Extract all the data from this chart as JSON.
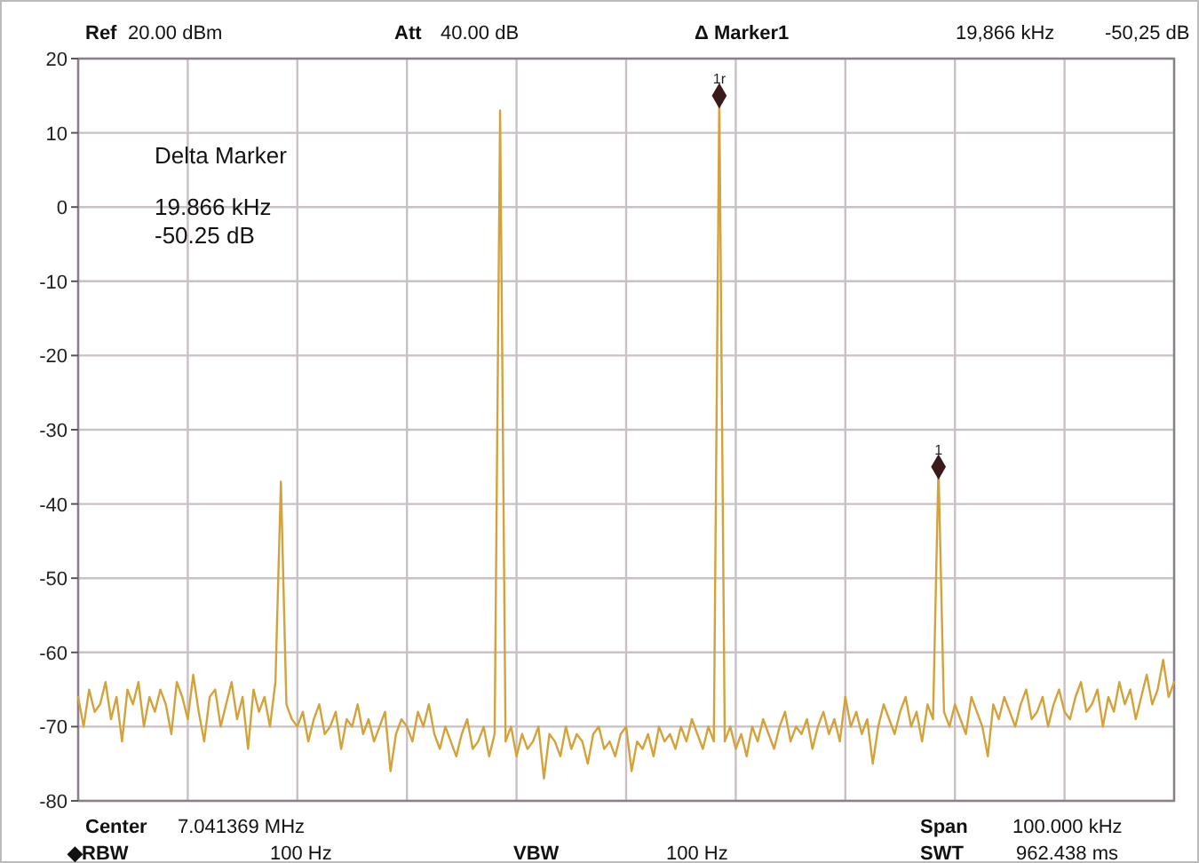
{
  "chart_data": {
    "type": "line",
    "ylim": [
      -80,
      20
    ],
    "yticks": [
      20,
      10,
      0,
      -10,
      -20,
      -30,
      -40,
      -50,
      -60,
      -70,
      -80
    ],
    "grid": true,
    "marker": "none",
    "categories": [
      null,
      null,
      null,
      null,
      null,
      null,
      null,
      null,
      null,
      null,
      null,
      null,
      null,
      null,
      null,
      null,
      null,
      null,
      null,
      null,
      null,
      null,
      null,
      null,
      null,
      null,
      null,
      null,
      null,
      null,
      null,
      null,
      null,
      null,
      null,
      null,
      null,
      null,
      null,
      null,
      null,
      null,
      null,
      null,
      null,
      null,
      null,
      null,
      null,
      null,
      null,
      null,
      null,
      null,
      null,
      null,
      null,
      null,
      null,
      null,
      null,
      null,
      null,
      null,
      null,
      null,
      null,
      null,
      null,
      null,
      null,
      null,
      null,
      null,
      null,
      null,
      null,
      null,
      null,
      null,
      null,
      null,
      null,
      null,
      null,
      null,
      null,
      null,
      null,
      null,
      null,
      null,
      null,
      null,
      null,
      null,
      null,
      null,
      null,
      null,
      null,
      null,
      null,
      null,
      null,
      null,
      null,
      null,
      null,
      null,
      null,
      null,
      null,
      null,
      null,
      null,
      null,
      null,
      null,
      null,
      null,
      null,
      null,
      null,
      null,
      null,
      null,
      null,
      null,
      null,
      null,
      null,
      null,
      null,
      null,
      null,
      null,
      null,
      null,
      null,
      null,
      null,
      null,
      null,
      null,
      null,
      null,
      null,
      null,
      null,
      null,
      null,
      null,
      null,
      null,
      null,
      null,
      null,
      null,
      null,
      null,
      null,
      null,
      null,
      null,
      null,
      null,
      null,
      null,
      null,
      null,
      null,
      null,
      null,
      null,
      null,
      null,
      null,
      null,
      null,
      null,
      null,
      null,
      null,
      null,
      null,
      null,
      null,
      null,
      null,
      null,
      null,
      null,
      null,
      null,
      null,
      null,
      null,
      null,
      null,
      null
    ],
    "series": [
      {
        "color": "#d4a23a",
        "values": [
          -66,
          -70,
          -65,
          -68,
          -67,
          -64,
          -69,
          -66,
          -72,
          -65,
          -67,
          -64,
          -70,
          -66,
          -68,
          -65,
          -67,
          -71,
          -64,
          -66,
          -69,
          -63,
          -68,
          -72,
          -66,
          -65,
          -70,
          -67,
          -64,
          -69,
          -66,
          -73,
          -65,
          -68,
          -66,
          -70,
          -64,
          -37,
          -67,
          -69,
          -70,
          -68,
          -72,
          -69,
          -67,
          -71,
          -70,
          -68,
          -73,
          -69,
          -70,
          -67,
          -71,
          -69,
          -72,
          -70,
          -68,
          -76,
          -71,
          -69,
          -70,
          -72,
          -68,
          -70,
          -67,
          -71,
          -73,
          -70,
          -72,
          -74,
          -71,
          -69,
          -73,
          -72,
          -70,
          -74,
          -71,
          13,
          -72,
          -70,
          -74,
          -71,
          -73,
          -72,
          -70,
          -77,
          -71,
          -72,
          -74,
          -70,
          -73,
          -71,
          -72,
          -75,
          -71,
          -70,
          -73,
          -72,
          -74,
          -71,
          -70,
          -76,
          -72,
          -73,
          -71,
          -74,
          -70,
          -72,
          -71,
          -73,
          -70,
          -72,
          -69,
          -71,
          -73,
          -70,
          -72,
          15,
          -72,
          -70,
          -73,
          -71,
          -74,
          -70,
          -72,
          -69,
          -71,
          -73,
          -70,
          -68,
          -72,
          -70,
          -71,
          -69,
          -73,
          -70,
          -68,
          -71,
          -69,
          -72,
          -66,
          -70,
          -68,
          -71,
          -69,
          -75,
          -70,
          -67,
          -69,
          -71,
          -68,
          -66,
          -70,
          -68,
          -72,
          -67,
          -69,
          -35,
          -68,
          -70,
          -67,
          -69,
          -71,
          -66,
          -68,
          -70,
          -74,
          -67,
          -69,
          -66,
          -68,
          -70,
          -67,
          -65,
          -69,
          -68,
          -66,
          -70,
          -67,
          -65,
          -68,
          -69,
          -66,
          -64,
          -68,
          -67,
          -65,
          -70,
          -66,
          -68,
          -64,
          -67,
          -65,
          -69,
          -66,
          -63,
          -67,
          -65,
          -61,
          -66,
          -64
        ]
      },
      {
        "type": "scatter",
        "color": "#3a1a1a",
        "marker": "diamond",
        "values": [
          null,
          null,
          null,
          null,
          null,
          null,
          null,
          null,
          null,
          null,
          null,
          null,
          null,
          null,
          null,
          null,
          null,
          null,
          null,
          null,
          null,
          null,
          null,
          null,
          null,
          null,
          null,
          null,
          null,
          null,
          null,
          null,
          null,
          null,
          null,
          null,
          null,
          null,
          null,
          null,
          null,
          null,
          null,
          null,
          null,
          null,
          null,
          null,
          null,
          null,
          null,
          null,
          null,
          null,
          null,
          null,
          null,
          null,
          null,
          null,
          null,
          null,
          null,
          null,
          null,
          null,
          null,
          null,
          null,
          null,
          null,
          null,
          null,
          null,
          null,
          null,
          null,
          null,
          null,
          null,
          null,
          null,
          null,
          null,
          null,
          null,
          null,
          null,
          null,
          null,
          null,
          null,
          null,
          null,
          null,
          null,
          null,
          null,
          null,
          null,
          null,
          null,
          null,
          null,
          null,
          null,
          null,
          null,
          null,
          null,
          null,
          null,
          null,
          null,
          null,
          null,
          null,
          15,
          null,
          null,
          null,
          null,
          null,
          null,
          null,
          null,
          null,
          null,
          null,
          null,
          null,
          null,
          null,
          null,
          null,
          null,
          null,
          null,
          null,
          null,
          null,
          null,
          null,
          null,
          null,
          null,
          null,
          null,
          null,
          null,
          null,
          null,
          null,
          null,
          null,
          null,
          null,
          -35,
          null,
          null,
          null,
          null,
          null,
          null,
          null,
          null,
          null,
          null,
          null,
          null,
          null,
          null,
          null,
          null,
          null,
          null,
          null,
          null,
          null,
          null,
          null,
          null,
          null,
          null,
          null,
          null,
          null,
          null,
          null,
          null,
          null,
          null,
          null,
          null,
          null,
          null,
          null,
          null,
          null,
          null,
          null
        ]
      }
    ],
    "annotations": [
      "Ref",
      "20.00 dBm",
      "Att",
      "40.00 dB",
      "Δ Marker1",
      "19,866 kHz",
      "-50,25 dB",
      "Delta Marker",
      "19.866 kHz",
      "-50.25 dB",
      "Center",
      "7.041369 MHz",
      "Span",
      "100.000 kHz",
      "◆RBW",
      "100 Hz",
      "VBW",
      "100 Hz",
      "SWT",
      "962.438 ms",
      {
        "text": "1r",
        "y": 15
      },
      {
        "text": "1",
        "y": -35
      }
    ]
  }
}
